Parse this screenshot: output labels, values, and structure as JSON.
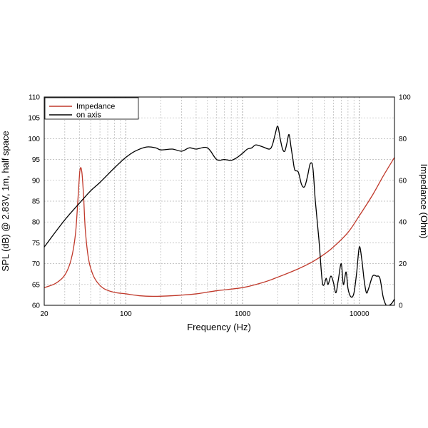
{
  "chart_data": {
    "type": "line",
    "title": "",
    "xlabel": "Frequency (Hz)",
    "ylabel": "SPL (dB) @ 2.83V, 1m, half space",
    "y2label": "Impedance (Ohm)",
    "xscale": "log",
    "xlim": [
      20,
      20000
    ],
    "ylim": [
      60,
      110
    ],
    "y2lim": [
      0,
      100
    ],
    "grid": true,
    "legend_position": "top-left",
    "x_ticks": [
      20,
      100,
      1000,
      10000
    ],
    "x_tick_labels": [
      "20",
      "100",
      "1000",
      "10000"
    ],
    "y_ticks": [
      60,
      65,
      70,
      75,
      80,
      85,
      90,
      95,
      100,
      105,
      110
    ],
    "y_tick_labels": [
      "60",
      "65",
      "70",
      "75",
      "80",
      "85",
      "90",
      "95",
      "100",
      "105",
      "110"
    ],
    "y2_ticks": [
      0,
      20,
      40,
      60,
      80,
      100
    ],
    "y2_tick_labels": [
      "0",
      "20",
      "40",
      "60",
      "80",
      "100"
    ],
    "series": [
      {
        "name": "Impedance",
        "axis": "right",
        "color": "#c0392b",
        "x": [
          20,
          25,
          30,
          34,
          37,
          39,
          40.5,
          42,
          43.5,
          45,
          48,
          52,
          57,
          65,
          80,
          100,
          130,
          170,
          250,
          400,
          600,
          1000,
          1500,
          2000,
          3000,
          4000,
          5000,
          6000,
          8000,
          10000,
          13000,
          16000,
          20000
        ],
        "values": [
          8.5,
          10.5,
          14.5,
          22,
          34,
          52,
          65,
          64,
          52,
          36,
          22,
          15,
          11,
          8,
          6.2,
          5.5,
          4.6,
          4.3,
          4.6,
          5.5,
          7,
          8.5,
          11,
          13.5,
          17.5,
          21,
          24.5,
          28,
          35,
          43,
          53,
          62,
          71
        ]
      },
      {
        "name": "on axis",
        "axis": "left",
        "color": "#000000",
        "x": [
          20,
          30,
          40,
          50,
          60,
          80,
          100,
          120,
          150,
          180,
          200,
          250,
          300,
          350,
          400,
          500,
          600,
          700,
          800,
          900,
          1000,
          1100,
          1200,
          1300,
          1500,
          1700,
          1800,
          1900,
          2000,
          2100,
          2200,
          2300,
          2400,
          2500,
          2600,
          2700,
          2800,
          3000,
          3200,
          3400,
          3600,
          3800,
          4000,
          4200,
          4500,
          4800,
          5000,
          5200,
          5400,
          5700,
          6000,
          6300,
          6600,
          7000,
          7300,
          7700,
          8000,
          8500,
          9000,
          9500,
          10000,
          10500,
          11000,
          11500,
          12000,
          13000,
          14000,
          15000,
          16000,
          17000,
          18000,
          19000,
          20000
        ],
        "values": [
          74,
          80.5,
          84.5,
          87.5,
          89.5,
          93,
          95.5,
          97,
          98,
          97.8,
          97.3,
          97.5,
          97,
          97.8,
          97.5,
          97.8,
          95,
          95,
          94.8,
          95.5,
          96.5,
          97.5,
          97.8,
          98.5,
          98,
          97.5,
          98.5,
          101,
          103,
          100,
          97.5,
          97,
          99,
          101,
          98,
          95,
          92.5,
          92,
          89,
          88.5,
          91,
          94,
          93,
          85,
          76,
          66,
          65,
          66.5,
          65,
          67,
          65.5,
          63,
          66,
          70,
          65,
          68,
          64,
          62,
          63,
          68,
          74,
          71,
          66,
          63,
          64,
          67,
          67,
          66.5,
          62,
          60,
          60,
          60.5,
          61.5
        ]
      }
    ]
  }
}
